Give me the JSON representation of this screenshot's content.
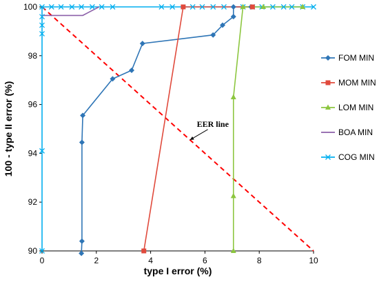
{
  "chart_data": {
    "type": "line",
    "xlabel": "type I error (%)",
    "ylabel": "100 - type II error (%)",
    "xlim": [
      0,
      10
    ],
    "ylim": [
      90,
      100
    ],
    "x_ticks": [
      0,
      2,
      4,
      6,
      8,
      10
    ],
    "y_ticks": [
      90,
      92,
      94,
      96,
      98,
      100
    ],
    "grid": false,
    "legend_position": "right",
    "series": [
      {
        "name": "FOM MIN",
        "color": "#2E75B6",
        "marker": "diamond",
        "points": [
          [
            1.45,
            89.9
          ],
          [
            1.47,
            90.4
          ],
          [
            1.47,
            94.45
          ],
          [
            1.5,
            95.55
          ],
          [
            2.6,
            97.05
          ],
          [
            3.3,
            97.4
          ],
          [
            3.7,
            98.5
          ],
          [
            6.3,
            98.85
          ],
          [
            6.65,
            99.25
          ],
          [
            7.05,
            99.6
          ],
          [
            7.05,
            100
          ],
          [
            7.7,
            100
          ]
        ]
      },
      {
        "name": "MOM MIN",
        "color": "#E04A3C",
        "marker": "square",
        "points": [
          [
            3.75,
            90
          ],
          [
            5.2,
            100
          ],
          [
            7.75,
            100
          ]
        ]
      },
      {
        "name": "LOM MIN",
        "color": "#8CC63F",
        "marker": "triangle",
        "points": [
          [
            7.05,
            90
          ],
          [
            7.05,
            92.25
          ],
          [
            7.05,
            96.3
          ],
          [
            7.4,
            100
          ],
          [
            8.15,
            100
          ],
          [
            9.6,
            100
          ]
        ]
      },
      {
        "name": "BOA MIN",
        "color": "#8B5FA8",
        "marker": "line",
        "points": [
          [
            0,
            99.65
          ],
          [
            0.35,
            99.65
          ],
          [
            1.1,
            99.65
          ],
          [
            1.5,
            99.65
          ],
          [
            2.1,
            100
          ]
        ]
      },
      {
        "name": "COG MIN",
        "color": "#00AEEF",
        "marker": "x",
        "points": [
          [
            0,
            90
          ],
          [
            0,
            94.1
          ],
          [
            0,
            98.9
          ],
          [
            0,
            99.25
          ],
          [
            0,
            99.6
          ],
          [
            0,
            100
          ],
          [
            0.35,
            100
          ],
          [
            0.7,
            100
          ],
          [
            1.1,
            100
          ],
          [
            1.45,
            100
          ],
          [
            1.85,
            100
          ],
          [
            2.2,
            100
          ],
          [
            2.6,
            100
          ],
          [
            4.4,
            100
          ],
          [
            4.8,
            100
          ],
          [
            5.55,
            100
          ],
          [
            5.9,
            100
          ],
          [
            6.3,
            100
          ],
          [
            6.7,
            100
          ],
          [
            7.4,
            100
          ],
          [
            7.75,
            100
          ],
          [
            8.1,
            100
          ],
          [
            8.5,
            100
          ],
          [
            8.9,
            100
          ],
          [
            9.2,
            100
          ],
          [
            9.6,
            100
          ],
          [
            10,
            100
          ]
        ]
      }
    ],
    "reference_line": {
      "label": "EER line",
      "color": "#FF0000",
      "style": "dashed",
      "points": [
        [
          0,
          100
        ],
        [
          10,
          90
        ]
      ]
    },
    "annotation": {
      "text": "EER line",
      "text_at": [
        5.7,
        94.75
      ],
      "arrow_to": [
        5.45,
        94.55
      ]
    }
  }
}
